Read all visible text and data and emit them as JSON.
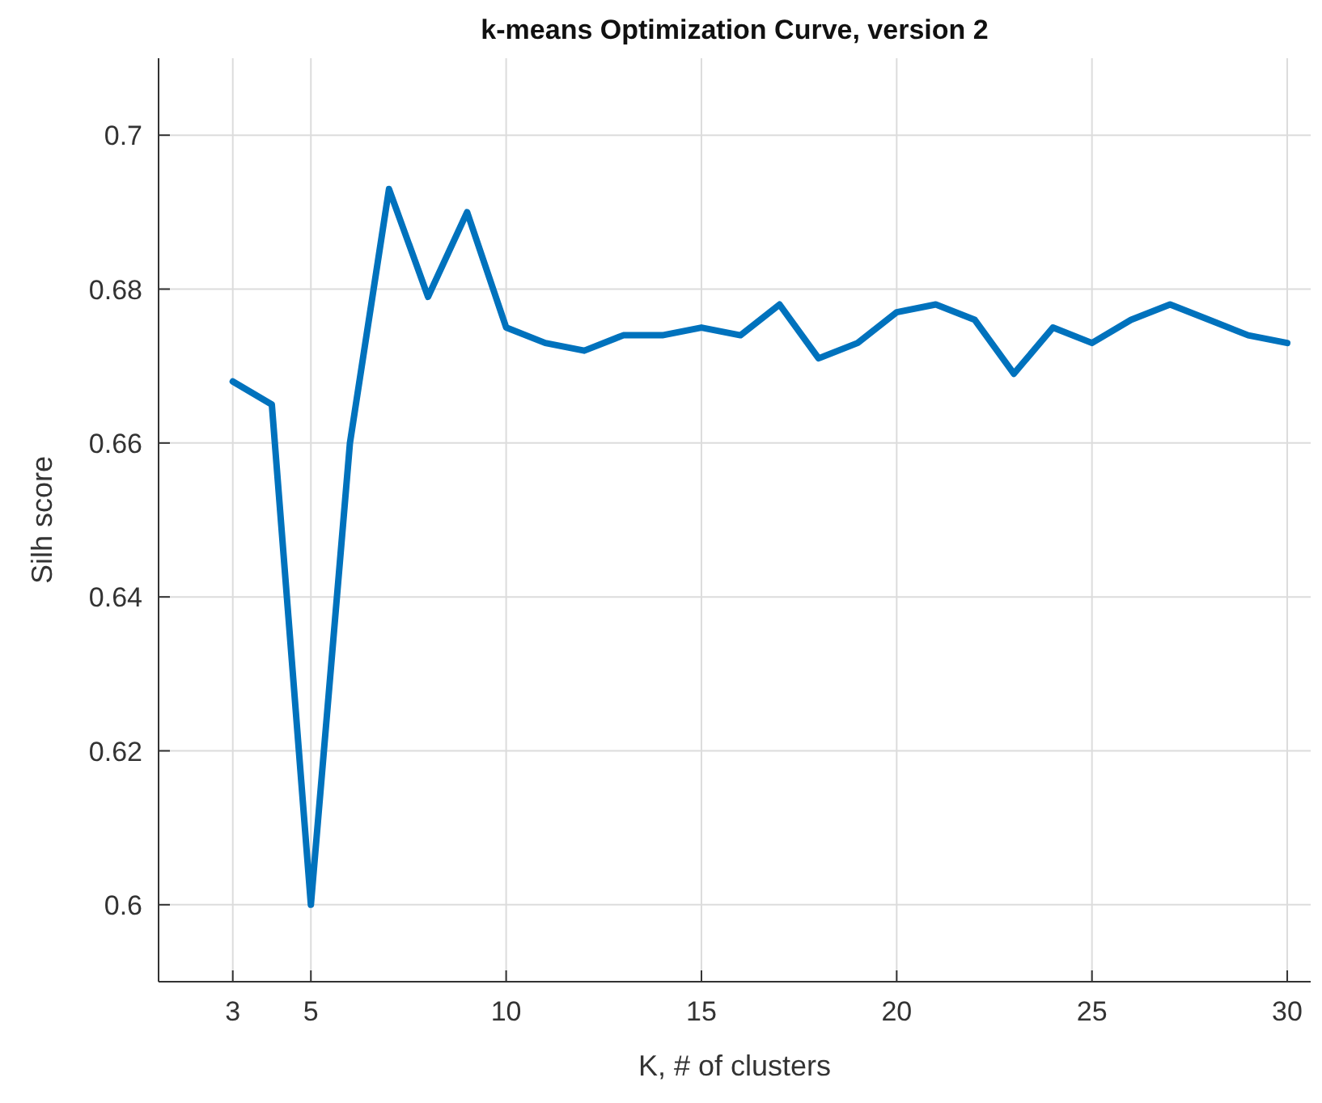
{
  "chart_data": {
    "type": "line",
    "title": "k-means Optimization Curve, version 2",
    "xlabel": "K, # of clusters",
    "ylabel": "Silh score",
    "x": [
      3,
      4,
      5,
      6,
      7,
      8,
      9,
      10,
      11,
      12,
      13,
      14,
      15,
      16,
      17,
      18,
      19,
      20,
      21,
      22,
      23,
      24,
      25,
      26,
      27,
      28,
      29,
      30
    ],
    "series": [
      {
        "color": "#0072bd",
        "values": [
          0.668,
          0.665,
          0.6,
          0.66,
          0.693,
          0.679,
          0.69,
          0.675,
          0.673,
          0.672,
          0.674,
          0.674,
          0.675,
          0.674,
          0.678,
          0.671,
          0.673,
          0.677,
          0.678,
          0.676,
          0.669,
          0.675,
          0.673,
          0.676,
          0.678,
          0.676,
          0.674,
          0.673
        ]
      }
    ],
    "xlim": [
      1.1,
      30.6
    ],
    "xticks": [
      3,
      5,
      10,
      15,
      20,
      25,
      30
    ],
    "ylim": [
      0.59,
      0.71
    ],
    "yticks": [
      0.6,
      0.62,
      0.64,
      0.66,
      0.68,
      0.7
    ],
    "grid": true,
    "marker": "none",
    "line_style": "solid"
  }
}
